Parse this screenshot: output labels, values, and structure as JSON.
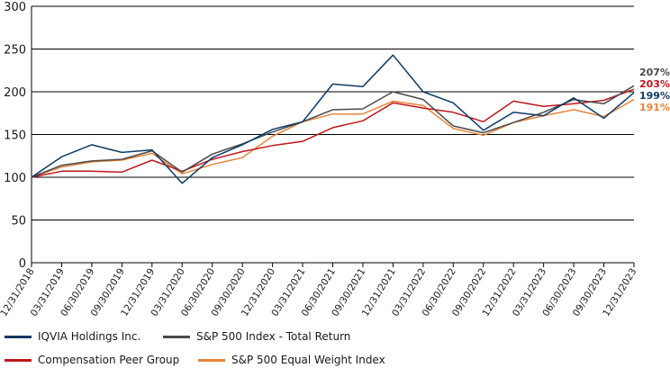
{
  "chart_data": {
    "type": "line",
    "title": "",
    "xlabel": "",
    "ylabel": "",
    "ylim": [
      0,
      300
    ],
    "yticks": [
      "0",
      "50",
      "100",
      "150",
      "200",
      "250",
      "300"
    ],
    "grid": true,
    "legend_position": "bottom",
    "categories": [
      "12/31/2018",
      "03/31/2019",
      "06/30/2019",
      "09/30/2019",
      "12/31/2019",
      "03/31/2020",
      "06/30/2020",
      "09/30/2020",
      "12/31/2020",
      "03/31/2021",
      "06/30/2021",
      "09/30/2021",
      "12/31/2021",
      "03/31/2022",
      "06/30/2022",
      "09/30/2022",
      "12/31/2022",
      "03/31/2023",
      "06/30/2023",
      "09/30/2023",
      "12/31/2023"
    ],
    "series": [
      {
        "name": "IQVIA Holdings Inc.",
        "color": "#0d3a66",
        "end_label": "199%",
        "values": [
          100,
          124,
          138,
          129,
          132,
          93,
          123,
          138,
          156,
          165,
          209,
          206,
          243,
          200,
          187,
          155,
          176,
          172,
          193,
          169,
          199
        ]
      },
      {
        "name": "S&P 500 Index - Total Return",
        "color": "#4a4a4a",
        "end_label": "207%",
        "values": [
          100,
          114,
          119,
          121,
          131,
          106,
          127,
          139,
          153,
          165,
          179,
          180,
          200,
          191,
          160,
          152,
          164,
          176,
          191,
          186,
          207
        ]
      },
      {
        "name": "Compensation Peer Group",
        "color": "#c0161c",
        "end_label": "203%",
        "values": [
          100,
          107,
          107,
          106,
          120,
          107,
          121,
          130,
          137,
          142,
          158,
          166,
          187,
          181,
          176,
          165,
          189,
          183,
          186,
          190,
          203
        ]
      },
      {
        "name": "S&P 500 Equal Weight Index",
        "color": "#e8843a",
        "end_label": "191%",
        "values": [
          100,
          112,
          118,
          120,
          128,
          104,
          115,
          123,
          148,
          165,
          174,
          174,
          189,
          184,
          157,
          149,
          164,
          172,
          179,
          171,
          191
        ]
      }
    ]
  }
}
